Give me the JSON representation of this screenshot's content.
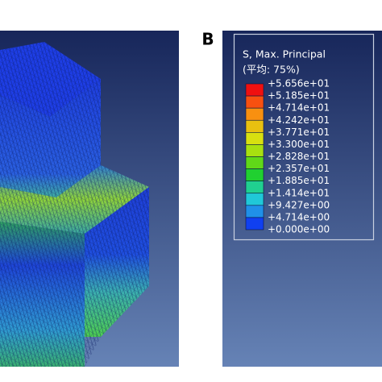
{
  "panel_label": "B",
  "legend": {
    "title": "S, Max. Principal",
    "subtitle": "(平均: 75%)",
    "labels": [
      "+5.656e+01",
      "+5.185e+01",
      "+4.714e+01",
      "+4.242e+01",
      "+3.771e+01",
      "+3.300e+01",
      "+2.828e+01",
      "+2.357e+01",
      "+1.885e+01",
      "+1.414e+01",
      "+9.427e+00",
      "+4.714e+00",
      "+0.000e+00"
    ]
  }
}
